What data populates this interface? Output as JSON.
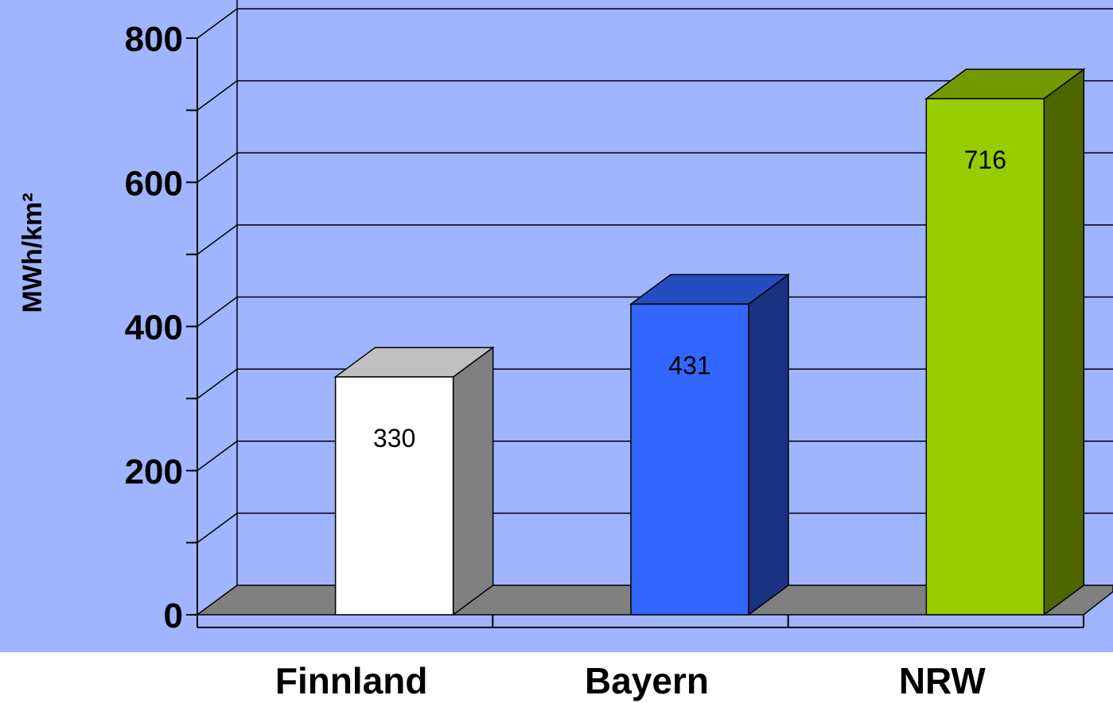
{
  "chart_data": {
    "type": "bar",
    "categories": [
      "Finnland",
      "Bayern",
      "NRW"
    ],
    "values": [
      330,
      431,
      716
    ],
    "data_labels": [
      "330",
      "431",
      "716"
    ],
    "ylabel": "MWh/km²",
    "xlabel": "",
    "ylim": [
      0,
      800
    ],
    "y_tick_labels": [
      "0",
      "200",
      "400",
      "600",
      "800"
    ],
    "y_minor_step": 100,
    "grid": true,
    "style": "3d",
    "colors": {
      "background": "#a0b4ff",
      "floor": "#808080",
      "bars": [
        {
          "front": "#ffffff",
          "side": "#808080",
          "top": "#c0c0c0"
        },
        {
          "front": "#3366ff",
          "side": "#1a3380",
          "top": "#264dbf"
        },
        {
          "front": "#99cc00",
          "side": "#4d6600",
          "top": "#739900"
        }
      ]
    }
  }
}
